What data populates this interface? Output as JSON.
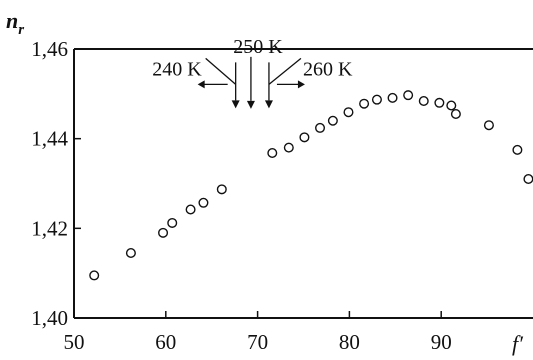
{
  "chart_data": {
    "type": "scatter",
    "ylabel": "n",
    "ylabel_sub": "r",
    "xlabel": "f′",
    "xlim": [
      50,
      100
    ],
    "ylim": [
      1.4,
      1.46
    ],
    "x_ticks": [
      50,
      60,
      70,
      80,
      90
    ],
    "x_tick_labels": [
      "50",
      "60",
      "70",
      "80",
      "90"
    ],
    "y_ticks": [
      1.4,
      1.42,
      1.44,
      1.46
    ],
    "y_tick_labels": [
      "1,40",
      "1,42",
      "1,44",
      "1,46"
    ],
    "grid": false,
    "marker": "open-circle",
    "points": [
      {
        "x": 52.2,
        "y": 1.4095
      },
      {
        "x": 56.2,
        "y": 1.4145
      },
      {
        "x": 59.7,
        "y": 1.419
      },
      {
        "x": 60.7,
        "y": 1.4212
      },
      {
        "x": 62.7,
        "y": 1.4242
      },
      {
        "x": 64.1,
        "y": 1.4257
      },
      {
        "x": 66.1,
        "y": 1.4287
      },
      {
        "x": 71.6,
        "y": 1.4368
      },
      {
        "x": 73.4,
        "y": 1.438
      },
      {
        "x": 75.1,
        "y": 1.4403
      },
      {
        "x": 76.8,
        "y": 1.4424
      },
      {
        "x": 78.2,
        "y": 1.444
      },
      {
        "x": 79.9,
        "y": 1.4459
      },
      {
        "x": 81.6,
        "y": 1.4478
      },
      {
        "x": 83.0,
        "y": 1.4487
      },
      {
        "x": 84.7,
        "y": 1.4491
      },
      {
        "x": 86.4,
        "y": 1.4497
      },
      {
        "x": 88.1,
        "y": 1.4484
      },
      {
        "x": 89.8,
        "y": 1.448
      },
      {
        "x": 91.1,
        "y": 1.4474
      },
      {
        "x": 91.6,
        "y": 1.4455
      },
      {
        "x": 95.2,
        "y": 1.443
      },
      {
        "x": 98.3,
        "y": 1.4375
      },
      {
        "x": 99.5,
        "y": 1.431
      }
    ],
    "annotations": [
      {
        "label": "240 K",
        "x": 68.7,
        "y": 1.453,
        "arrow_dir": "left"
      },
      {
        "label": "250 K",
        "x": 69.6,
        "y": 1.4578,
        "arrow_dir": "down"
      },
      {
        "label": "260 K",
        "x": 70.8,
        "y": 1.453,
        "arrow_dir": "right"
      }
    ]
  }
}
